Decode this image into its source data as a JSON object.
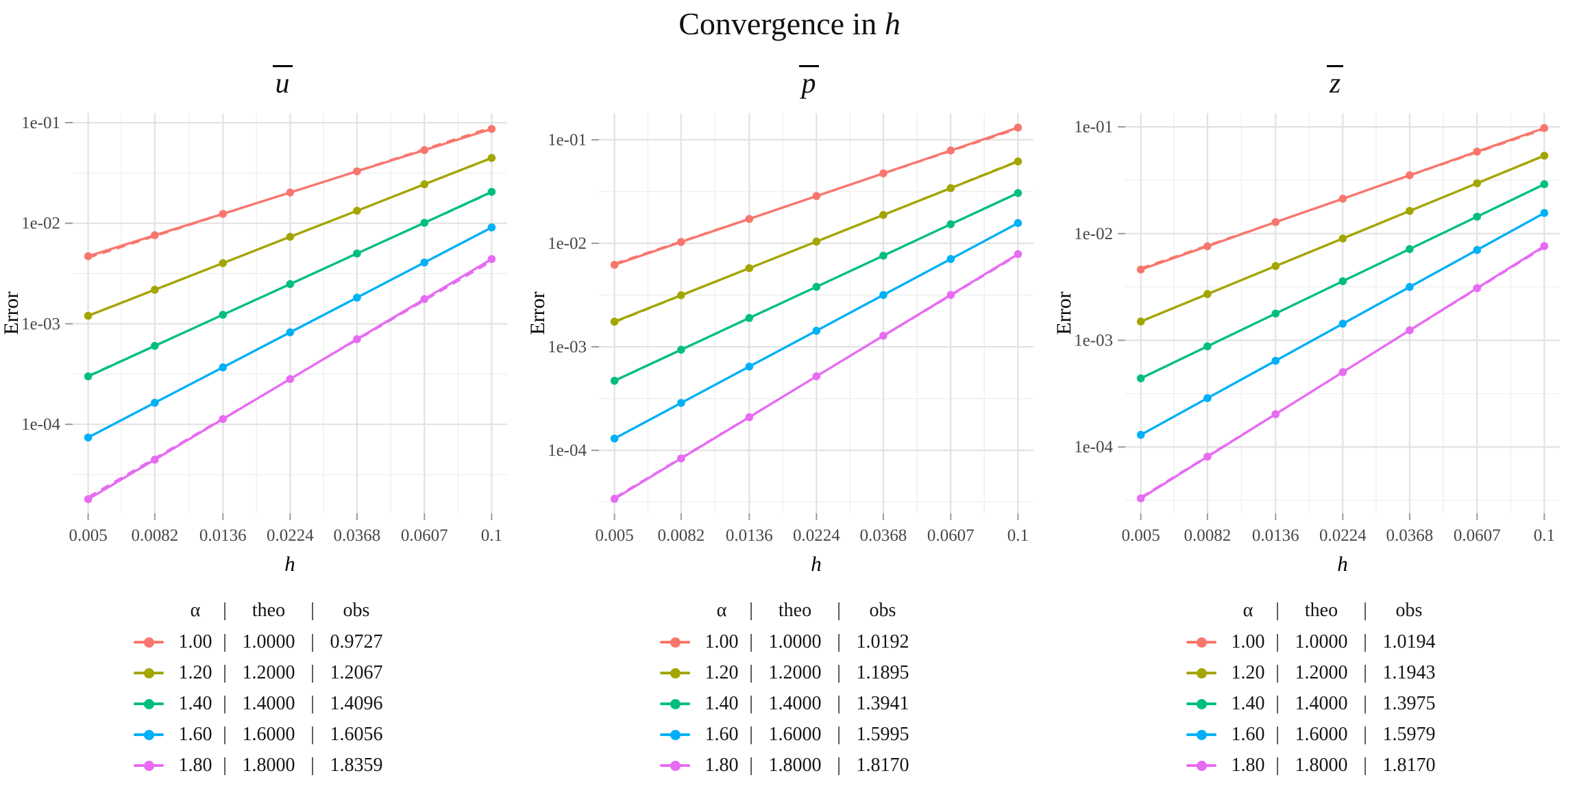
{
  "page": {
    "title": {
      "text": "Convergence in",
      "math_var": "h"
    }
  },
  "axes": {
    "x_label": "h",
    "y_label": "Error",
    "x_ticks": [
      "0.005",
      "0.0082",
      "0.0136",
      "0.0224",
      "0.0368",
      "0.0607",
      "0.1"
    ],
    "y_ticks": [
      "1e-01",
      "1e-02",
      "1e-03",
      "1e-04"
    ]
  },
  "legend": {
    "header": {
      "alpha": "α",
      "separator": "|",
      "theo": "theo",
      "obs": "obs"
    }
  },
  "palette": {
    "alpha_1_00": "#F8766D",
    "alpha_1_20": "#A3A500",
    "alpha_1_40": "#00BF7D",
    "alpha_1_60": "#00B0F6",
    "alpha_1_80": "#E76BF3",
    "grid_major": "#E2E2E2",
    "grid_minor": "#F0F0F0",
    "tick": "#9a9a9a",
    "tick_text": "#474747"
  },
  "chart_data": [
    {
      "id": "u_bar",
      "type": "line",
      "title_display": "ū",
      "title_letter": "u",
      "x_scale": "log10",
      "y_scale": "log10",
      "grid": true,
      "legend_position": "bottom",
      "xlabel": "h",
      "ylabel": "Error",
      "x": [
        0.005,
        0.0082,
        0.0136,
        0.0224,
        0.0368,
        0.0607,
        0.1
      ],
      "series": [
        {
          "alpha": "1.00",
          "theo": "1.0000",
          "obs": "0.9727",
          "color": "#F8766D",
          "values": [
            0.0047,
            0.0076,
            0.0124,
            0.0202,
            0.0328,
            0.0533,
            0.0866
          ]
        },
        {
          "alpha": "1.20",
          "theo": "1.2000",
          "obs": "1.2067",
          "color": "#A3A500",
          "values": [
            0.0012,
            0.00218,
            0.00401,
            0.00733,
            0.0133,
            0.0244,
            0.0446
          ]
        },
        {
          "alpha": "1.40",
          "theo": "1.4000",
          "obs": "1.4096",
          "color": "#00BF7D",
          "values": [
            0.0003,
            0.000603,
            0.00123,
            0.00248,
            0.005,
            0.0101,
            0.0205
          ]
        },
        {
          "alpha": "1.60",
          "theo": "1.6000",
          "obs": "1.6056",
          "color": "#00B0F6",
          "values": [
            7.4e-05,
            0.000164,
            0.000369,
            0.000822,
            0.00182,
            0.00407,
            0.00908
          ]
        },
        {
          "alpha": "1.80",
          "theo": "1.8000",
          "obs": "1.8359",
          "color": "#E76BF3",
          "values": [
            1.8e-05,
            4.46e-05,
            0.000113,
            0.000282,
            0.000703,
            0.00176,
            0.0044
          ]
        }
      ]
    },
    {
      "id": "p_bar",
      "type": "line",
      "title_display": "p̄",
      "title_letter": "p",
      "x_scale": "log10",
      "y_scale": "log10",
      "grid": true,
      "legend_position": "bottom",
      "xlabel": "h",
      "ylabel": "Error",
      "x": [
        0.005,
        0.0082,
        0.0136,
        0.0224,
        0.0368,
        0.0607,
        0.1
      ],
      "series": [
        {
          "alpha": "1.00",
          "theo": "1.0000",
          "obs": "1.0192",
          "color": "#F8766D",
          "values": [
            0.0062,
            0.0103,
            0.0172,
            0.0286,
            0.0474,
            0.0789,
            0.1313
          ]
        },
        {
          "alpha": "1.20",
          "theo": "1.2000",
          "obs": "1.1895",
          "color": "#A3A500",
          "values": [
            0.00175,
            0.00315,
            0.00575,
            0.0104,
            0.0188,
            0.0341,
            0.0618
          ]
        },
        {
          "alpha": "1.40",
          "theo": "1.4000",
          "obs": "1.3941",
          "color": "#00BF7D",
          "values": [
            0.00047,
            0.000937,
            0.0019,
            0.0038,
            0.0076,
            0.0153,
            0.0306
          ]
        },
        {
          "alpha": "1.60",
          "theo": "1.6000",
          "obs": "1.5995",
          "color": "#00B0F6",
          "values": [
            0.00013,
            0.000287,
            0.000644,
            0.00143,
            0.00317,
            0.00705,
            0.0157
          ]
        },
        {
          "alpha": "1.80",
          "theo": "1.8000",
          "obs": "1.8170",
          "color": "#E76BF3",
          "values": [
            3.4e-05,
            8.35e-05,
            0.000209,
            0.000519,
            0.00128,
            0.00317,
            0.00786
          ]
        }
      ]
    },
    {
      "id": "z_bar",
      "type": "line",
      "title_display": "z̄",
      "title_letter": "z",
      "x_scale": "log10",
      "y_scale": "log10",
      "grid": true,
      "legend_position": "bottom",
      "xlabel": "h",
      "ylabel": "Error",
      "x": [
        0.005,
        0.0082,
        0.0136,
        0.0224,
        0.0368,
        0.0607,
        0.1
      ],
      "series": [
        {
          "alpha": "1.00",
          "theo": "1.0000",
          "obs": "1.0194",
          "color": "#F8766D",
          "values": [
            0.0046,
            0.0076,
            0.0128,
            0.0212,
            0.0352,
            0.0586,
            0.0975
          ]
        },
        {
          "alpha": "1.20",
          "theo": "1.2000",
          "obs": "1.1943",
          "color": "#A3A500",
          "values": [
            0.0015,
            0.00271,
            0.00496,
            0.00899,
            0.0163,
            0.0296,
            0.0537
          ]
        },
        {
          "alpha": "1.40",
          "theo": "1.4000",
          "obs": "1.3975",
          "color": "#00BF7D",
          "values": [
            0.00044,
            0.000878,
            0.00178,
            0.00358,
            0.00716,
            0.0144,
            0.029
          ]
        },
        {
          "alpha": "1.60",
          "theo": "1.6000",
          "obs": "1.5979",
          "color": "#00B0F6",
          "values": [
            0.00013,
            0.000287,
            0.000643,
            0.00143,
            0.00316,
            0.00702,
            0.0156
          ]
        },
        {
          "alpha": "1.80",
          "theo": "1.8000",
          "obs": "1.8170",
          "color": "#E76BF3",
          "values": [
            3.3e-05,
            8.11e-05,
            0.000203,
            0.000503,
            0.00124,
            0.00308,
            0.00763
          ]
        }
      ]
    }
  ]
}
